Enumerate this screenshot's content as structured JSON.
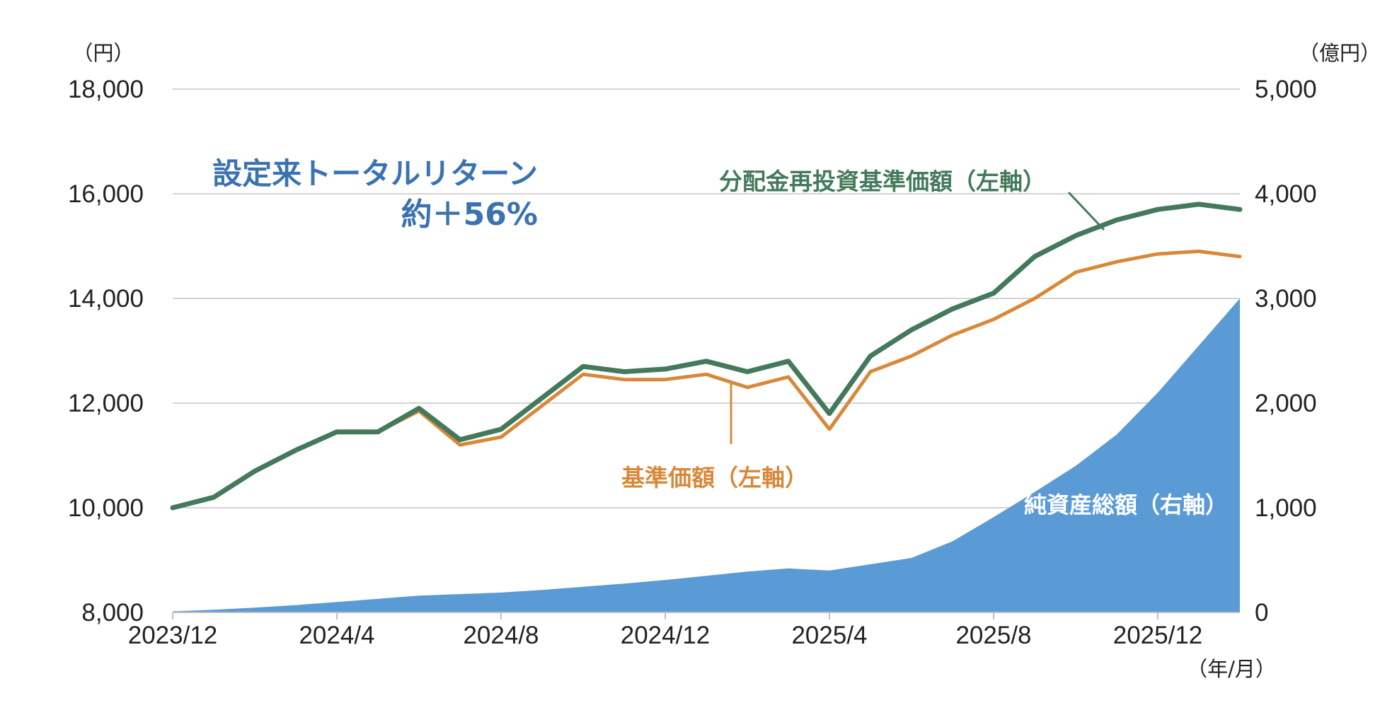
{
  "chart_data": {
    "type": "line",
    "left_axis": {
      "unit": "（円）",
      "ylim": [
        8000,
        18000
      ],
      "ticks": [
        "8,000",
        "10,000",
        "12,000",
        "14,000",
        "16,000",
        "18,000"
      ]
    },
    "right_axis": {
      "unit": "（億円）",
      "ylim": [
        0,
        5000
      ],
      "ticks": [
        "0",
        "1,000",
        "2,000",
        "3,000",
        "4,000",
        "5,000"
      ]
    },
    "x_axis": {
      "unit": "（年/月）",
      "ticks": [
        "2023/12",
        "2024/4",
        "2024/8",
        "2024/12",
        "2025/4",
        "2025/8",
        "2025/12"
      ]
    },
    "x": [
      "2023/12",
      "2024/1",
      "2024/2",
      "2024/3",
      "2024/4",
      "2024/5",
      "2024/6",
      "2024/7",
      "2024/8",
      "2024/9",
      "2024/10",
      "2024/11",
      "2024/12",
      "2025/1",
      "2025/2",
      "2025/3",
      "2025/4",
      "2025/5",
      "2025/6",
      "2025/7",
      "2025/8",
      "2025/9",
      "2025/10",
      "2025/11",
      "2025/12",
      "2026/1",
      "2026/2"
    ],
    "series": [
      {
        "name": "分配金再投資基準価額（左軸）",
        "axis": "left",
        "type": "line",
        "color": "#447a5b",
        "values": [
          10000,
          10200,
          10700,
          11100,
          11450,
          11450,
          11900,
          11300,
          11500,
          12100,
          12700,
          12600,
          12650,
          12800,
          12600,
          12800,
          11800,
          12900,
          13400,
          13800,
          14100,
          14800,
          15200,
          15500,
          15700,
          15800,
          15700
        ]
      },
      {
        "name": "基準価額（左軸）",
        "axis": "left",
        "type": "line",
        "color": "#d88839",
        "values": [
          10000,
          10200,
          10700,
          11100,
          11450,
          11450,
          11850,
          11200,
          11350,
          11950,
          12550,
          12450,
          12450,
          12550,
          12300,
          12500,
          11500,
          12600,
          12900,
          13300,
          13600,
          14000,
          14500,
          14700,
          14850,
          14900,
          14800
        ]
      },
      {
        "name": "純資産総額（右軸）",
        "axis": "right",
        "type": "area",
        "color": "#5b9bd5",
        "values": [
          10,
          25,
          45,
          70,
          100,
          130,
          160,
          175,
          190,
          215,
          245,
          275,
          310,
          350,
          390,
          420,
          400,
          460,
          520,
          680,
          910,
          1150,
          1400,
          1700,
          2100,
          2550,
          3000
        ]
      }
    ],
    "annotations": {
      "total_return_title": "設定来トータルリターン",
      "total_return_value": "約＋56%",
      "total_return_color": "#3a73b0"
    }
  }
}
